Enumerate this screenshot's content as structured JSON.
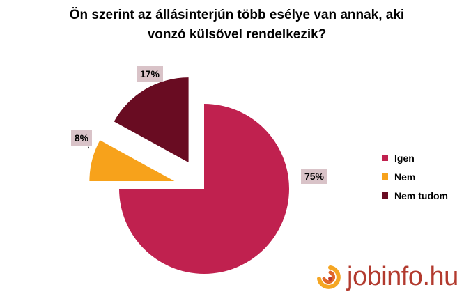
{
  "chart_data": {
    "type": "pie",
    "title_lines": [
      "Ön szerint az állásinterjún több esélye van annak, aki",
      "vonzó külsővel rendelkezik?"
    ],
    "categories": [
      "Igen",
      "Nem",
      "Nem tudom"
    ],
    "values": [
      75,
      8,
      17
    ],
    "value_labels": [
      "75%",
      "8%",
      "17%"
    ],
    "colors": [
      "#c0214f",
      "#f7a21b",
      "#690c22"
    ],
    "exploded": [
      false,
      true,
      true
    ],
    "legend_position": "right"
  },
  "brand": {
    "logo_text": "jobinfo.hu"
  }
}
